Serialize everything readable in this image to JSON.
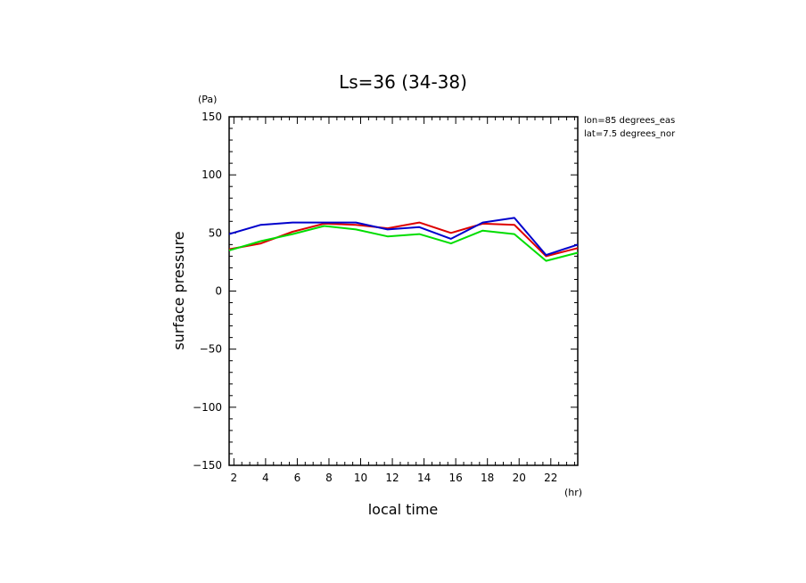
{
  "chart_data": {
    "type": "line",
    "title": "Ls=36 (34-38)",
    "xlabel": "local time",
    "ylabel": "surface pressure",
    "x_unit": "(hr)",
    "y_unit": "(Pa)",
    "annotations": [
      "lon=85 degrees_eas",
      "lat=7.5 degrees_nor"
    ],
    "xlim": [
      1.7,
      23.7
    ],
    "ylim": [
      -150,
      150
    ],
    "x_ticks": [
      2,
      4,
      6,
      8,
      10,
      12,
      14,
      16,
      18,
      20,
      22
    ],
    "y_ticks": [
      -150,
      -100,
      -50,
      0,
      50,
      100,
      150
    ],
    "grid": false,
    "x": [
      1.7,
      3.7,
      5.7,
      7.7,
      9.7,
      11.7,
      13.7,
      15.7,
      17.7,
      19.7,
      21.7,
      23.7
    ],
    "series": [
      {
        "color": "#dd0000",
        "values": [
          36,
          41,
          51,
          58,
          57,
          54,
          59,
          50,
          58,
          57,
          30,
          37
        ]
      },
      {
        "color": "#0000cc",
        "values": [
          49,
          57,
          59,
          59,
          59,
          53,
          55,
          45,
          59,
          63,
          31,
          40
        ]
      },
      {
        "color": "#00dd00",
        "values": [
          35,
          43,
          49,
          56,
          53,
          47,
          49,
          41,
          52,
          49,
          26,
          33
        ]
      }
    ]
  }
}
